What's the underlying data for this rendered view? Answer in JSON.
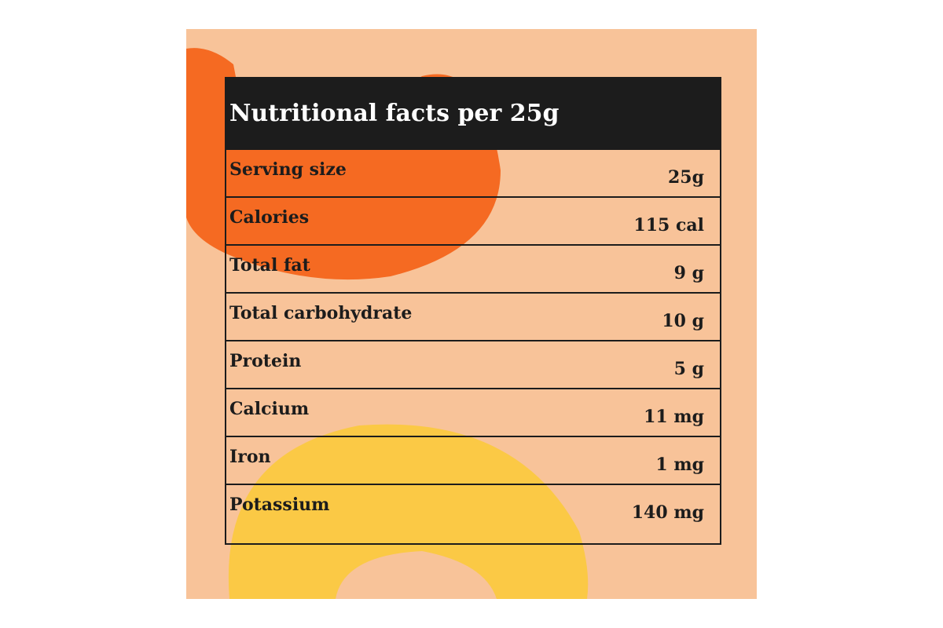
{
  "header": {
    "title": "Nutritional facts per 25g"
  },
  "table": {
    "rows": [
      [
        "Serving size",
        "25g"
      ],
      [
        "Calories",
        "115 cal"
      ],
      [
        "Total fat",
        "9 g"
      ],
      [
        "Total carbohydrate",
        "10 g"
      ],
      [
        "Protein",
        "5 g"
      ],
      [
        "Calcium",
        "11 mg"
      ],
      [
        "Iron",
        "1 mg"
      ],
      [
        "Potassium",
        "140 mg"
      ]
    ]
  }
}
